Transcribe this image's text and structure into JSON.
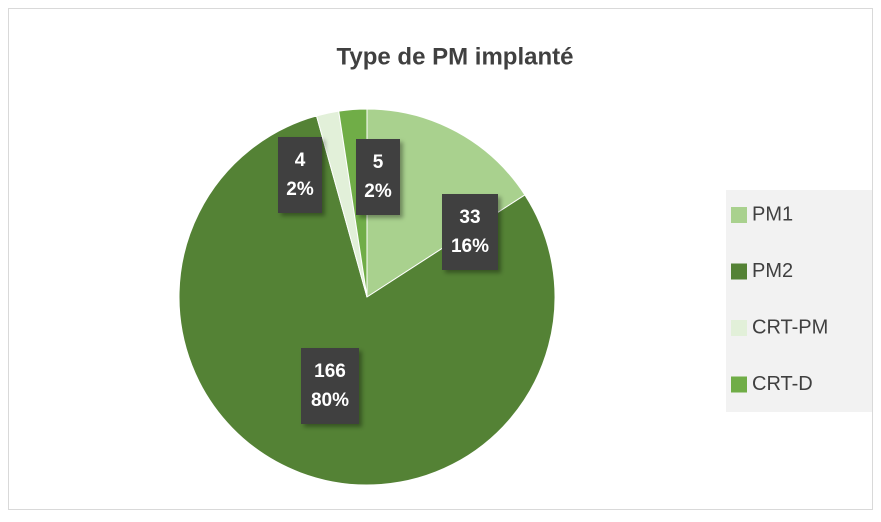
{
  "chart_data": {
    "type": "pie",
    "title": "Type de PM implanté",
    "categories": [
      "PM1",
      "PM2",
      "CRT-PM",
      "CRT-D"
    ],
    "values": [
      33,
      166,
      4,
      5
    ],
    "shares": [
      {
        "value": 16,
        "label": "16%"
      },
      {
        "value": 80,
        "label": "80%"
      },
      {
        "value": 2,
        "label": "2%"
      },
      {
        "value": 2,
        "label": "2%"
      }
    ],
    "colors": [
      "#a9d18e",
      "#548235",
      "#e2f0d9",
      "#70ad47"
    ],
    "legend": "right"
  }
}
